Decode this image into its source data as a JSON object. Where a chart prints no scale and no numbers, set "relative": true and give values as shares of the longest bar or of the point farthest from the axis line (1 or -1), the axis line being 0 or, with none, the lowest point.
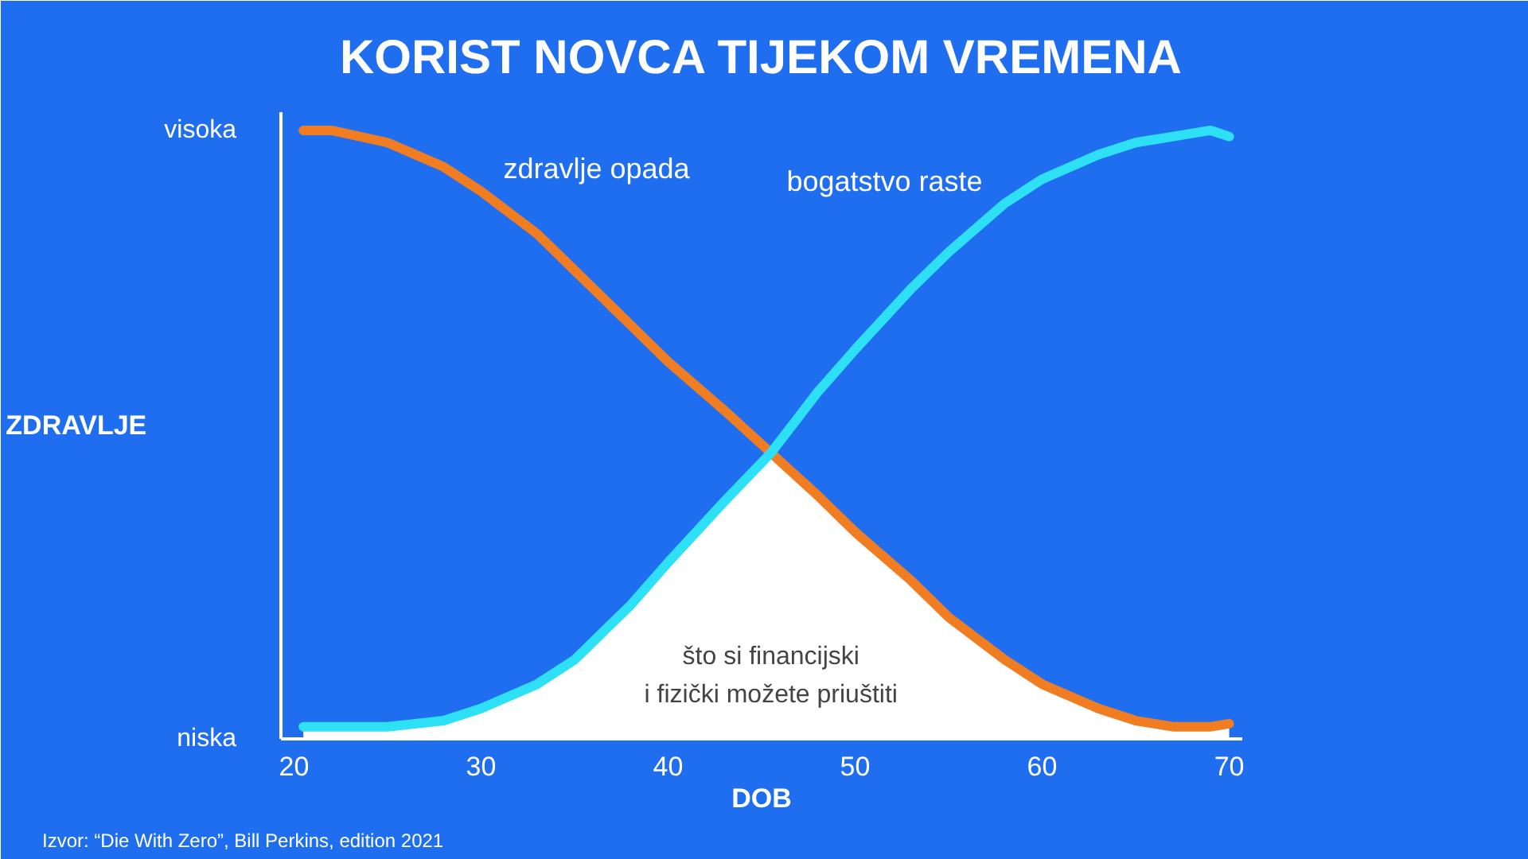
{
  "chart_data": {
    "type": "line",
    "title": "KORIST NOVCA TIJEKOM VREMENA",
    "xlabel": "DOB",
    "ylabel": "ZDRAVLJE",
    "relative": true,
    "xlim": [
      19.3,
      70.7
    ],
    "xticks": [
      20,
      30,
      40,
      50,
      60,
      70
    ],
    "grid": false,
    "series": [
      {
        "type": "area",
        "color": "#ffffff",
        "x": [
          20.5,
          22,
          25,
          28,
          30,
          33,
          35,
          38,
          40,
          43,
          45.5,
          48,
          50,
          53,
          55,
          58,
          60,
          63,
          65,
          67,
          69,
          70
        ],
        "values": [
          0.02,
          0.02,
          0.02,
          0.03,
          0.05,
          0.09,
          0.13,
          0.22,
          0.29,
          0.39,
          0.47,
          0.4,
          0.34,
          0.26,
          0.2,
          0.13,
          0.09,
          0.05,
          0.03,
          0.02,
          0.02,
          0.025
        ]
      },
      {
        "name": "zdravlje opada",
        "color": "#f07d22",
        "x": [
          20.5,
          22,
          25,
          28,
          30,
          33,
          35,
          38,
          40,
          43,
          45.5,
          48,
          50,
          53,
          55,
          58,
          60,
          63,
          65,
          67,
          69,
          70
        ],
        "values": [
          1.0,
          1.0,
          0.98,
          0.94,
          0.9,
          0.83,
          0.77,
          0.68,
          0.62,
          0.54,
          0.47,
          0.4,
          0.34,
          0.26,
          0.2,
          0.13,
          0.09,
          0.05,
          0.03,
          0.02,
          0.02,
          0.025
        ]
      },
      {
        "name": "bogatstvo raste",
        "color": "#2ee0f5",
        "x": [
          20.5,
          22,
          25,
          28,
          30,
          33,
          35,
          38,
          40,
          43,
          45.5,
          48,
          50,
          53,
          55,
          58,
          60,
          63,
          65,
          67,
          69,
          70
        ],
        "values": [
          0.02,
          0.02,
          0.02,
          0.03,
          0.05,
          0.09,
          0.13,
          0.22,
          0.29,
          0.39,
          0.47,
          0.57,
          0.64,
          0.74,
          0.8,
          0.88,
          0.92,
          0.96,
          0.98,
          0.99,
          1.0,
          0.99
        ]
      }
    ],
    "annotations": [
      "visoka",
      "niska",
      "što si financijski\ni fizički možete priuštiti",
      "Izvor: “Die With Zero”, Bill Perkins, edition 2021"
    ]
  }
}
